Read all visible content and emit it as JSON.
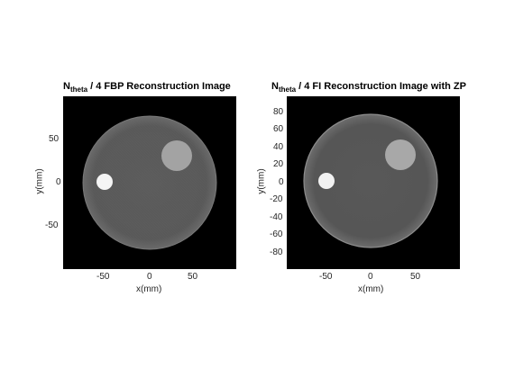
{
  "figure": {
    "panels": [
      {
        "title_main": "N",
        "title_sub": "theta",
        "title_rest": " / 4 FBP Reconstruction Image",
        "xlabel": "x(mm)",
        "ylabel": "y(mm)",
        "xticks": [
          "-50",
          "0",
          "50"
        ],
        "yticks": [
          "50",
          "0",
          "-50"
        ]
      },
      {
        "title_main": "N",
        "title_sub": "theta",
        "title_rest": " / 4 FI Reconstruction Image with ZP",
        "xlabel": "x(mm)",
        "ylabel": "y(mm)",
        "xticks": [
          "-50",
          "0",
          "50"
        ],
        "yticks": [
          "80",
          "60",
          "40",
          "20",
          "0",
          "-20",
          "-40",
          "-60",
          "-80"
        ]
      }
    ]
  },
  "colors": {
    "background": "#000000",
    "disk": "#5a5a5a",
    "disk_edge": "#8a8a8a",
    "bright_insert": "#f4f4f4",
    "gray_insert": "#a6a6a6"
  }
}
